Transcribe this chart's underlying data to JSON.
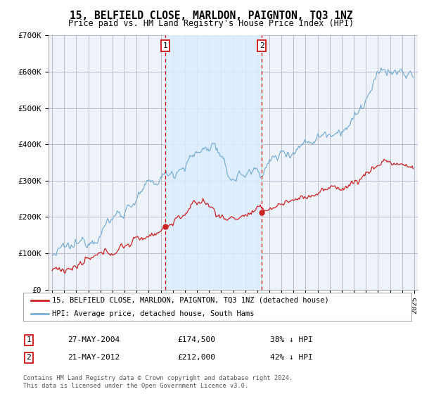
{
  "title": "15, BELFIELD CLOSE, MARLDON, PAIGNTON, TQ3 1NZ",
  "subtitle": "Price paid vs. HM Land Registry's House Price Index (HPI)",
  "legend_line1": "15, BELFIELD CLOSE, MARLDON, PAIGNTON, TQ3 1NZ (detached house)",
  "legend_line2": "HPI: Average price, detached house, South Hams",
  "sale1_label": "1",
  "sale1_date": "27-MAY-2004",
  "sale1_price": "£174,500",
  "sale1_pct": "38% ↓ HPI",
  "sale2_label": "2",
  "sale2_date": "21-MAY-2012",
  "sale2_price": "£212,000",
  "sale2_pct": "42% ↓ HPI",
  "footer": "Contains HM Land Registry data © Crown copyright and database right 2024.\nThis data is licensed under the Open Government Licence v3.0.",
  "hpi_color": "#7bafd4",
  "price_color": "#cc2222",
  "vline_color": "#cc0000",
  "shade_color": "#ddeeff",
  "plot_bg": "#eef3fa",
  "ylim": [
    0,
    700000
  ],
  "ylabel_ticks": [
    0,
    100000,
    200000,
    300000,
    400000,
    500000,
    600000,
    700000
  ],
  "ylabel_labels": [
    "£0",
    "£100K",
    "£200K",
    "£300K",
    "£400K",
    "£500K",
    "£600K",
    "£700K"
  ],
  "sale1_year": 2004.375,
  "sale1_price_val": 174500,
  "sale2_year": 2012.375,
  "sale2_price_val": 212000
}
